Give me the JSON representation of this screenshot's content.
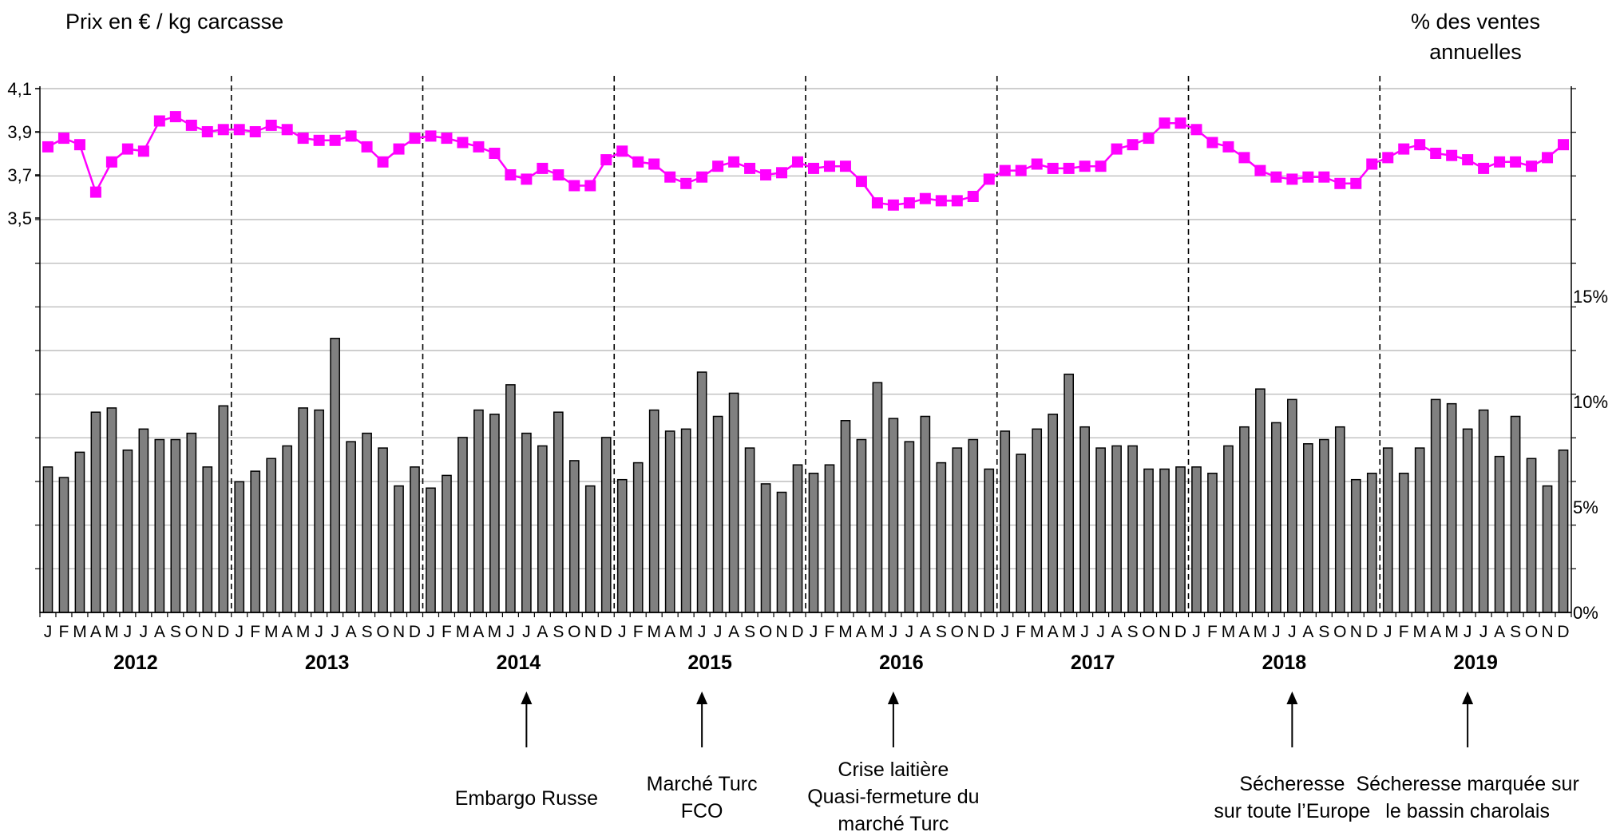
{
  "chart_data": {
    "type": "bar+line",
    "left_axis_title": "Prix en € / kg carcasse",
    "right_axis_title_line1": "% des ventes",
    "right_axis_title_line2": "annuelles",
    "left_ticks": [
      "4,1",
      "3,9",
      "3,7",
      "3,5"
    ],
    "right_ticks": [
      "15%",
      "10%",
      "5%",
      "0%"
    ],
    "month_labels": [
      "J",
      "F",
      "M",
      "A",
      "M",
      "J",
      "J",
      "A",
      "S",
      "O",
      "N",
      "D"
    ],
    "years": [
      "2012",
      "2013",
      "2014",
      "2015",
      "2016",
      "2017",
      "2018",
      "2019"
    ],
    "price_ylim": [
      3.5,
      4.1
    ],
    "share_ylim": [
      0,
      20
    ],
    "colors": {
      "price_line": "#ff00ff",
      "bars": "#808080",
      "bar_stroke": "#000000",
      "grid": "#b0b0b0"
    },
    "series": [
      {
        "name": "Prix",
        "axis": "left",
        "values": [
          3.83,
          3.87,
          3.84,
          3.62,
          3.76,
          3.82,
          3.81,
          3.95,
          3.97,
          3.93,
          3.9,
          3.91,
          3.91,
          3.9,
          3.93,
          3.91,
          3.87,
          3.86,
          3.86,
          3.88,
          3.83,
          3.76,
          3.82,
          3.87,
          3.88,
          3.87,
          3.85,
          3.83,
          3.8,
          3.7,
          3.68,
          3.73,
          3.7,
          3.65,
          3.65,
          3.77,
          3.81,
          3.76,
          3.75,
          3.69,
          3.66,
          3.69,
          3.74,
          3.76,
          3.73,
          3.7,
          3.71,
          3.76,
          3.73,
          3.74,
          3.74,
          3.67,
          3.57,
          3.56,
          3.57,
          3.59,
          3.58,
          3.58,
          3.6,
          3.68,
          3.72,
          3.72,
          3.75,
          3.73,
          3.73,
          3.74,
          3.74,
          3.82,
          3.84,
          3.87,
          3.94,
          3.94,
          3.91,
          3.85,
          3.83,
          3.78,
          3.72,
          3.69,
          3.68,
          3.69,
          3.69,
          3.66,
          3.66,
          3.75,
          3.78,
          3.82,
          3.84,
          3.8,
          3.79,
          3.77,
          3.73,
          3.76,
          3.76,
          3.74,
          3.78,
          3.84
        ]
      },
      {
        "name": "% des ventes annuelles",
        "axis": "right",
        "values": [
          6.9,
          6.4,
          7.6,
          9.5,
          9.7,
          7.7,
          8.7,
          8.2,
          8.2,
          8.5,
          6.9,
          9.8,
          6.2,
          6.7,
          7.3,
          7.9,
          9.7,
          9.6,
          13.0,
          8.1,
          8.5,
          7.8,
          6.0,
          6.9,
          5.9,
          6.5,
          8.3,
          9.6,
          9.4,
          10.8,
          8.5,
          7.9,
          9.5,
          7.2,
          6.0,
          8.3,
          6.3,
          7.1,
          9.6,
          8.6,
          8.7,
          11.4,
          9.3,
          10.4,
          7.8,
          6.1,
          5.7,
          7.0,
          6.6,
          7.0,
          9.1,
          8.2,
          10.9,
          9.2,
          8.1,
          9.3,
          7.1,
          7.8,
          8.2,
          6.8,
          8.6,
          7.5,
          8.7,
          9.4,
          11.3,
          8.8,
          7.8,
          7.9,
          7.9,
          6.8,
          6.8,
          6.9,
          6.9,
          6.6,
          7.9,
          8.8,
          10.6,
          9.0,
          10.1,
          8.0,
          8.2,
          8.8,
          6.3,
          6.6,
          7.8,
          6.6,
          7.8,
          10.1,
          9.9,
          8.7,
          9.6,
          7.4,
          9.3,
          7.3,
          6.0,
          7.7
        ]
      }
    ],
    "annotations": [
      {
        "year_index": 2,
        "month_index": 6,
        "lines": [
          "Embargo Russe"
        ]
      },
      {
        "year_index": 3,
        "month_index": 5,
        "lines": [
          "Marché Turc",
          "FCO"
        ]
      },
      {
        "year_index": 4,
        "month_index": 5,
        "lines": [
          "Crise laitière",
          "Quasi-fermeture du",
          "marché Turc"
        ]
      },
      {
        "year_index": 6,
        "month_index": 6,
        "lines": [
          "Sécheresse",
          "sur toute l’Europe"
        ]
      },
      {
        "year_index": 7,
        "month_index": 5,
        "lines": [
          "Sécheresse marquée sur",
          "le bassin charolais"
        ]
      }
    ],
    "grid": true,
    "legend": "none"
  }
}
